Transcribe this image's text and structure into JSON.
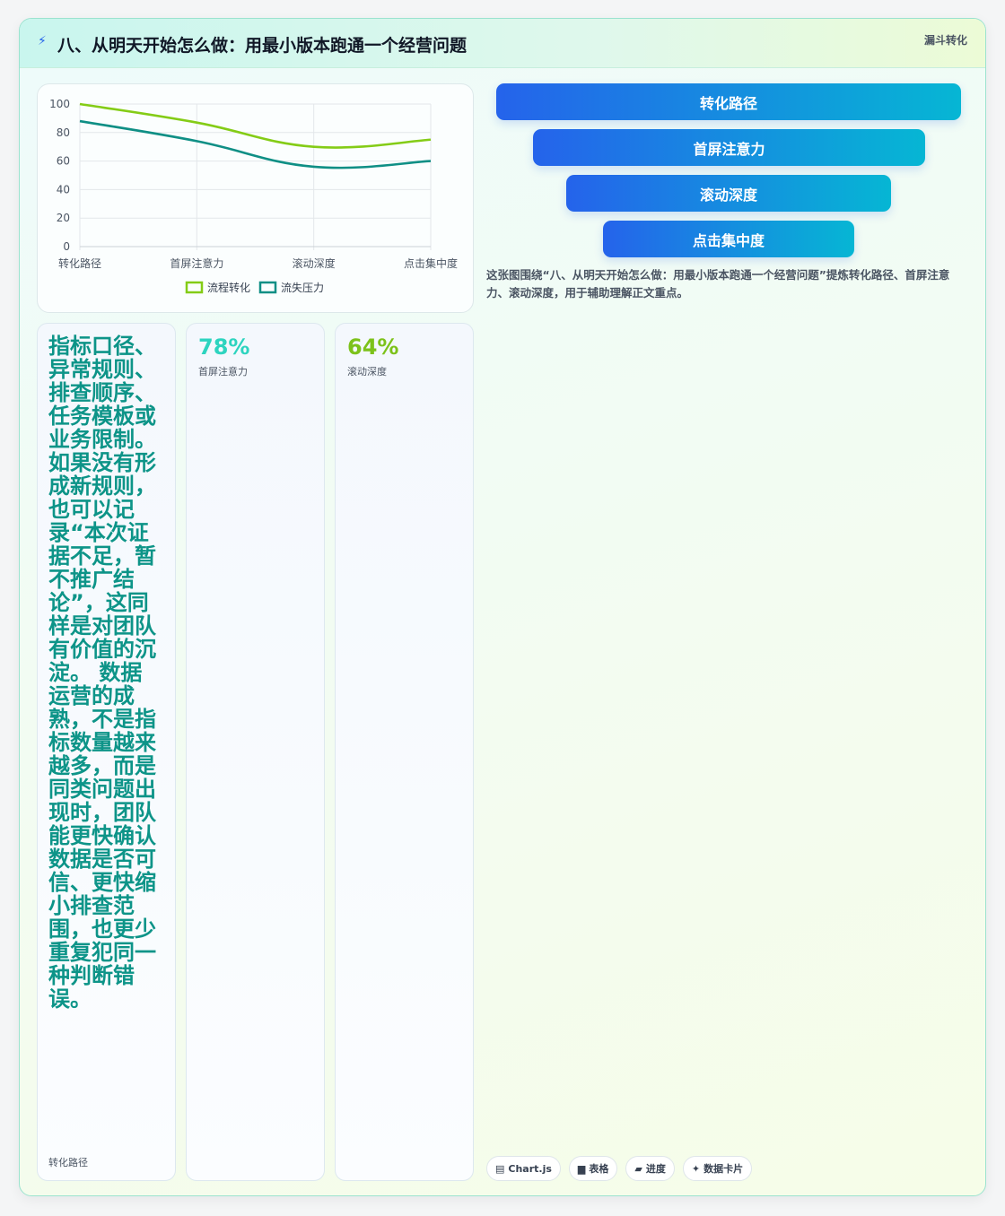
{
  "header": {
    "title": "八、从明天开始怎么做：用最小版本跑通一个经营问题",
    "badge": "漏斗转化",
    "icon": "bolt-icon"
  },
  "chart_data": {
    "type": "line",
    "categories": [
      "转化路径",
      "首屏注意力",
      "滚动深度",
      "点击集中度"
    ],
    "series": [
      {
        "name": "流程转化",
        "values": [
          100,
          87,
          70,
          75
        ],
        "color": "#84cc16"
      },
      {
        "name": "流失压力",
        "values": [
          88,
          74,
          56,
          60
        ],
        "color": "#0f8f85"
      }
    ],
    "yticks": [
      0,
      20,
      40,
      60,
      80,
      100
    ],
    "ylim": [
      0,
      100
    ],
    "grid": true,
    "legend": "bottom"
  },
  "funnel": [
    {
      "label": "转化路径"
    },
    {
      "label": "首屏注意力"
    },
    {
      "label": "滚动深度"
    },
    {
      "label": "点击集中度"
    }
  ],
  "caption": "这张图围绕“八、从明天开始怎么做：用最小版本跑通一个经营问题”提炼转化路径、首屏注意力、滚动深度，用于辅助理解正文重点。",
  "cards": [
    {
      "text": "指标口径、异常规则、排查顺序、任务模板或业务限制。如果没有形成新规则，也可以记录“本次证据不足，暂不推广结论”，这同样是对团队有价值的沉淀。 数据运营的成熟，不是指标数量越来越多，而是同类问题出现时，团队能更快确认数据是否可信、更快缩小排查范围，也更少重复犯同一种判断错误。",
      "label": "转化路径"
    },
    {
      "value": "78%",
      "label": "首屏注意力",
      "color": "#2dd4bf"
    },
    {
      "value": "64%",
      "label": "滚动深度",
      "color": "#7cc21a"
    }
  ],
  "tags": [
    {
      "icon": "▤",
      "label": "Chart.js"
    },
    {
      "icon": "▆",
      "label": "表格"
    },
    {
      "icon": "▰",
      "label": "进度"
    },
    {
      "icon": "✦",
      "label": "数据卡片"
    }
  ]
}
